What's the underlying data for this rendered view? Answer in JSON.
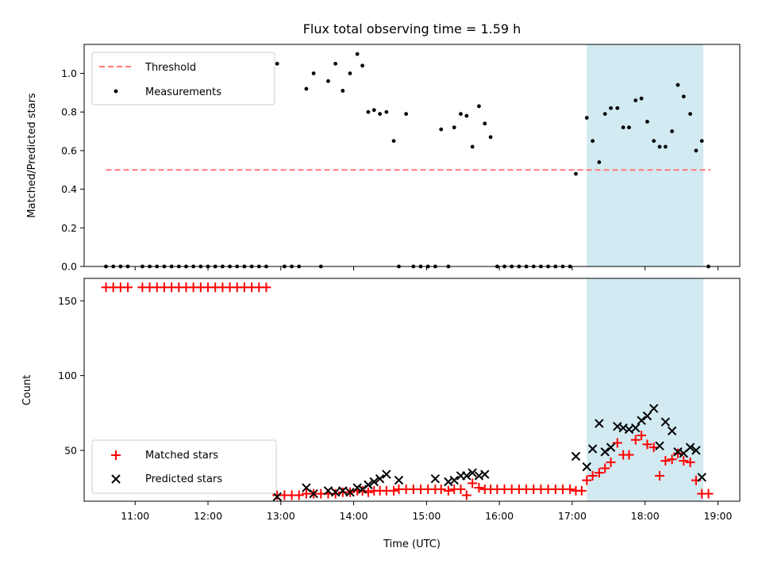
{
  "title": "Flux total observing time = 1.59 h",
  "xlabel": "Time (UTC)",
  "x_tick_labels": [
    "11:00",
    "12:00",
    "13:00",
    "14:00",
    "15:00",
    "16:00",
    "17:00",
    "18:00",
    "19:00"
  ],
  "chart_data": [
    {
      "type": "scatter",
      "ylabel": "Matched/Predicted stars",
      "xlim_hours": [
        10.3,
        19.3
      ],
      "ylim": [
        0,
        1.15
      ],
      "y_ticks": [
        0.0,
        0.2,
        0.4,
        0.6,
        0.8,
        1.0
      ],
      "legend": "upper left",
      "highlight_span_hours": [
        17.2,
        18.8
      ],
      "threshold": {
        "name": "Threshold",
        "value": 0.5,
        "x_range_hours": [
          10.6,
          18.9
        ],
        "color": "#ff7777"
      },
      "measurements": {
        "name": "Measurements",
        "color": "#000000",
        "x_hours": [
          10.6,
          10.7,
          10.8,
          10.9,
          11.1,
          11.2,
          11.3,
          11.4,
          11.5,
          11.6,
          11.7,
          11.8,
          11.9,
          12.0,
          12.1,
          12.2,
          12.3,
          12.4,
          12.5,
          12.6,
          12.7,
          12.8,
          12.95,
          13.05,
          13.15,
          13.25,
          13.35,
          13.45,
          13.55,
          13.65,
          13.75,
          13.85,
          13.95,
          14.05,
          14.12,
          14.2,
          14.28,
          14.36,
          14.45,
          14.55,
          14.62,
          14.72,
          14.82,
          14.92,
          15.02,
          15.12,
          15.2,
          15.3,
          15.38,
          15.47,
          15.55,
          15.63,
          15.72,
          15.8,
          15.88,
          15.97,
          16.07,
          16.17,
          16.27,
          16.37,
          16.47,
          16.57,
          16.67,
          16.77,
          16.87,
          16.97,
          17.05,
          17.2,
          17.28,
          17.37,
          17.45,
          17.53,
          17.62,
          17.7,
          17.78,
          17.87,
          17.95,
          18.03,
          18.12,
          18.2,
          18.28,
          18.37,
          18.45,
          18.53,
          18.62,
          18.7,
          18.78,
          18.87
        ],
        "y": [
          0,
          0,
          0,
          0,
          0,
          0,
          0,
          0,
          0,
          0,
          0,
          0,
          0,
          0,
          0,
          0,
          0,
          0,
          0,
          0,
          0,
          0,
          1.05,
          0,
          0,
          0,
          0.92,
          1.0,
          0,
          0.96,
          1.05,
          0.91,
          1.0,
          1.1,
          1.04,
          0.8,
          0.81,
          0.79,
          0.8,
          0.65,
          0,
          0.79,
          0,
          0,
          0,
          0,
          0.71,
          0,
          0.72,
          0.79,
          0.78,
          0.62,
          0.83,
          0.74,
          0.67,
          0,
          0,
          0,
          0,
          0,
          0,
          0,
          0,
          0,
          0,
          0,
          0.48,
          0.77,
          0.65,
          0.54,
          0.79,
          0.82,
          0.82,
          0.72,
          0.72,
          0.86,
          0.87,
          0.75,
          0.65,
          0.62,
          0.62,
          0.7,
          0.94,
          0.88,
          0.79,
          0.6,
          0.65,
          0
        ]
      }
    },
    {
      "type": "scatter",
      "ylabel": "Count",
      "xlim_hours": [
        10.3,
        19.3
      ],
      "ylim": [
        16,
        165
      ],
      "y_ticks": [
        50,
        100,
        150
      ],
      "legend": "lower left",
      "highlight_span_hours": [
        17.2,
        18.8
      ],
      "series": [
        {
          "name": "Matched stars",
          "marker": "plus",
          "color": "#ff0000",
          "x_hours": [
            10.6,
            10.7,
            10.8,
            10.9,
            11.1,
            11.2,
            11.3,
            11.4,
            11.5,
            11.6,
            11.7,
            11.8,
            11.9,
            12.0,
            12.1,
            12.2,
            12.3,
            12.4,
            12.5,
            12.6,
            12.7,
            12.8,
            12.95,
            13.05,
            13.15,
            13.25,
            13.35,
            13.45,
            13.55,
            13.65,
            13.75,
            13.85,
            13.95,
            14.05,
            14.12,
            14.2,
            14.28,
            14.36,
            14.45,
            14.55,
            14.62,
            14.72,
            14.82,
            14.92,
            15.02,
            15.12,
            15.2,
            15.3,
            15.38,
            15.47,
            15.55,
            15.63,
            15.72,
            15.8,
            15.88,
            15.97,
            16.07,
            16.17,
            16.27,
            16.37,
            16.47,
            16.57,
            16.67,
            16.77,
            16.87,
            16.97,
            17.05,
            17.13,
            17.2,
            17.28,
            17.37,
            17.45,
            17.53,
            17.62,
            17.7,
            17.78,
            17.87,
            17.95,
            18.03,
            18.12,
            18.2,
            18.28,
            18.37,
            18.45,
            18.53,
            18.62,
            18.7,
            18.78,
            18.87
          ],
          "y": [
            159,
            159,
            159,
            159,
            159,
            159,
            159,
            159,
            159,
            159,
            159,
            159,
            159,
            159,
            159,
            159,
            159,
            159,
            159,
            159,
            159,
            159,
            20,
            20,
            20,
            20,
            21,
            21,
            21,
            21,
            21,
            22,
            22,
            23,
            23,
            22,
            23,
            23,
            23,
            23,
            24,
            24,
            24,
            24,
            24,
            24,
            24,
            23,
            24,
            24,
            20,
            28,
            25,
            24,
            24,
            24,
            24,
            24,
            24,
            24,
            24,
            24,
            24,
            24,
            24,
            24,
            23,
            23,
            30,
            33,
            35,
            38,
            42,
            55,
            47,
            47,
            57,
            60,
            54,
            52,
            33,
            43,
            44,
            48,
            43,
            42,
            30,
            21,
            21
          ]
        },
        {
          "name": "Predicted stars",
          "marker": "x",
          "color": "#000000",
          "x_hours": [
            12.95,
            13.35,
            13.45,
            13.65,
            13.75,
            13.85,
            13.95,
            14.05,
            14.12,
            14.2,
            14.28,
            14.36,
            14.45,
            14.62,
            15.12,
            15.3,
            15.38,
            15.47,
            15.55,
            15.63,
            15.72,
            15.8,
            17.05,
            17.2,
            17.28,
            17.37,
            17.45,
            17.53,
            17.62,
            17.7,
            17.78,
            17.87,
            17.95,
            18.03,
            18.12,
            18.2,
            18.28,
            18.37,
            18.45,
            18.53,
            18.62,
            18.7,
            18.78
          ],
          "y": [
            19,
            25,
            21,
            23,
            22,
            23,
            22,
            25,
            24,
            27,
            29,
            31,
            34,
            30,
            31,
            29,
            30,
            33,
            33,
            35,
            33,
            34,
            46,
            39,
            51,
            68,
            49,
            52,
            66,
            65,
            64,
            65,
            70,
            73,
            78,
            53,
            69,
            63,
            49,
            48,
            52,
            50,
            32
          ]
        }
      ]
    }
  ]
}
